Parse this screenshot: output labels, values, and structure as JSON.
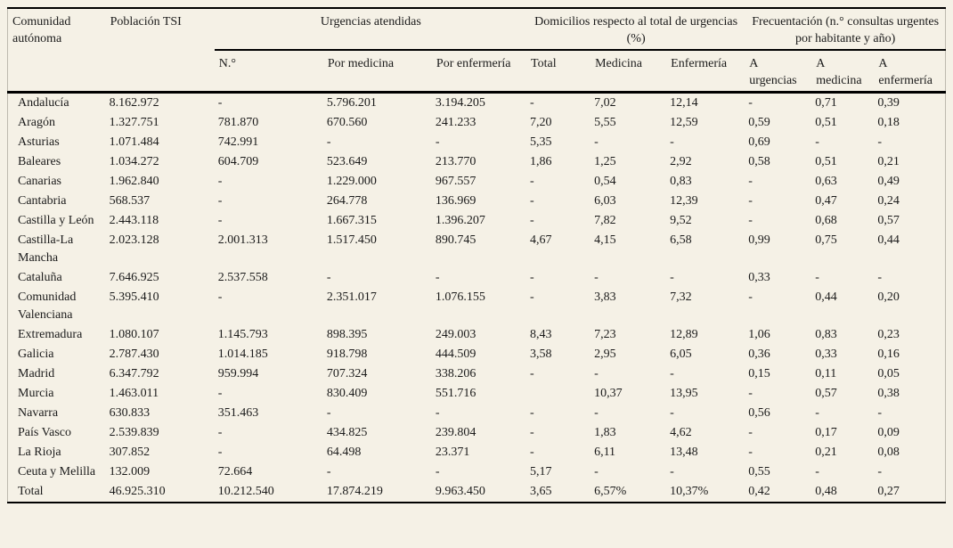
{
  "colors": {
    "background": "#f5f1e6",
    "rule": "#000000",
    "text": "#1b1b1b",
    "edge_line": "#bdb9ae"
  },
  "table": {
    "header": {
      "col_comunidad": "Comunidad autónoma",
      "col_poblacion": "Población TSI",
      "group_urgencias": "Urgencias atendidas",
      "group_domicilios": "Domicilios respecto al total de urgencias (%)",
      "group_frecuentacion": "Frecuentación (n.° consultas urgentes por habitante y año)",
      "sub": [
        "N.°",
        "Por medicina",
        "Por enfermería",
        "Total",
        "Medicina",
        "Enfermería",
        "A urgencias",
        "A medicina",
        "A enfermería"
      ]
    },
    "rows": [
      {
        "comunidad": "Andalucía",
        "values": [
          "8.162.972",
          "-",
          "5.796.201",
          "3.194.205",
          "-",
          "7,02",
          "12,14",
          "-",
          "0,71",
          "0,39"
        ]
      },
      {
        "comunidad": "Aragón",
        "values": [
          "1.327.751",
          "781.870",
          "670.560",
          "241.233",
          "7,20",
          "5,55",
          "12,59",
          "0,59",
          "0,51",
          "0,18"
        ]
      },
      {
        "comunidad": "Asturias",
        "values": [
          "1.071.484",
          "742.991",
          "-",
          "-",
          "5,35",
          "-",
          "-",
          "0,69",
          "-",
          "-"
        ]
      },
      {
        "comunidad": "Baleares",
        "values": [
          "1.034.272",
          "604.709",
          "523.649",
          "213.770",
          "1,86",
          "1,25",
          "2,92",
          "0,58",
          "0,51",
          "0,21"
        ]
      },
      {
        "comunidad": "Canarias",
        "values": [
          "1.962.840",
          "-",
          "1.229.000",
          "967.557",
          "-",
          "0,54",
          "0,83",
          "-",
          "0,63",
          "0,49"
        ]
      },
      {
        "comunidad": "Cantabria",
        "values": [
          "568.537",
          "-",
          "264.778",
          "136.969",
          "-",
          "6,03",
          "12,39",
          "-",
          "0,47",
          "0,24"
        ]
      },
      {
        "comunidad": "Castilla y León",
        "values": [
          "2.443.118",
          "-",
          "1.667.315",
          "1.396.207",
          "-",
          "7,82",
          "9,52",
          "-",
          "0,68",
          "0,57"
        ]
      },
      {
        "comunidad": "Castilla-La Mancha",
        "values": [
          "2.023.128",
          "2.001.313",
          "1.517.450",
          "890.745",
          "4,67",
          "4,15",
          "6,58",
          "0,99",
          "0,75",
          "0,44"
        ]
      },
      {
        "comunidad": "Cataluña",
        "values": [
          "7.646.925",
          "2.537.558",
          "-",
          "-",
          "-",
          "-",
          "-",
          "0,33",
          "-",
          "-"
        ]
      },
      {
        "comunidad": "Comunidad Valenciana",
        "values": [
          "5.395.410",
          "-",
          "2.351.017",
          "1.076.155",
          "-",
          "3,83",
          "7,32",
          "-",
          "0,44",
          "0,20"
        ]
      },
      {
        "comunidad": "Extremadura",
        "values": [
          "1.080.107",
          "1.145.793",
          "898.395",
          "249.003",
          "8,43",
          "7,23",
          "12,89",
          "1,06",
          "0,83",
          "0,23"
        ]
      },
      {
        "comunidad": "Galicia",
        "values": [
          "2.787.430",
          "1.014.185",
          "918.798",
          "444.509",
          "3,58",
          "2,95",
          "6,05",
          "0,36",
          "0,33",
          "0,16"
        ]
      },
      {
        "comunidad": "Madrid",
        "values": [
          "6.347.792",
          "959.994",
          "707.324",
          "338.206",
          "-",
          "-",
          "-",
          "0,15",
          "0,11",
          "0,05"
        ]
      },
      {
        "comunidad": "Murcia",
        "values": [
          "1.463.011",
          "-",
          "830.409",
          "551.716",
          "",
          "10,37",
          "13,95",
          "-",
          "0,57",
          "0,38"
        ]
      },
      {
        "comunidad": "Navarra",
        "values": [
          "630.833",
          "351.463",
          "-",
          "-",
          "-",
          "-",
          "-",
          "0,56",
          "-",
          "-"
        ]
      },
      {
        "comunidad": "País Vasco",
        "values": [
          "2.539.839",
          "-",
          "434.825",
          "239.804",
          "-",
          "1,83",
          "4,62",
          "-",
          "0,17",
          "0,09"
        ]
      },
      {
        "comunidad": "La Rioja",
        "values": [
          "307.852",
          "-",
          "64.498",
          "23.371",
          "-",
          "6,11",
          "13,48",
          "-",
          "0,21",
          "0,08"
        ]
      },
      {
        "comunidad": "Ceuta y Melilla",
        "values": [
          "132.009",
          "72.664",
          "-",
          "-",
          "5,17",
          "-",
          "-",
          "0,55",
          "-",
          "-"
        ]
      },
      {
        "comunidad": "Total",
        "values": [
          "46.925.310",
          "10.212.540",
          "17.874.219",
          "9.963.450",
          "3,65",
          "6,57%",
          "10,37%",
          "0,42",
          "0,48",
          "0,27"
        ]
      }
    ]
  }
}
